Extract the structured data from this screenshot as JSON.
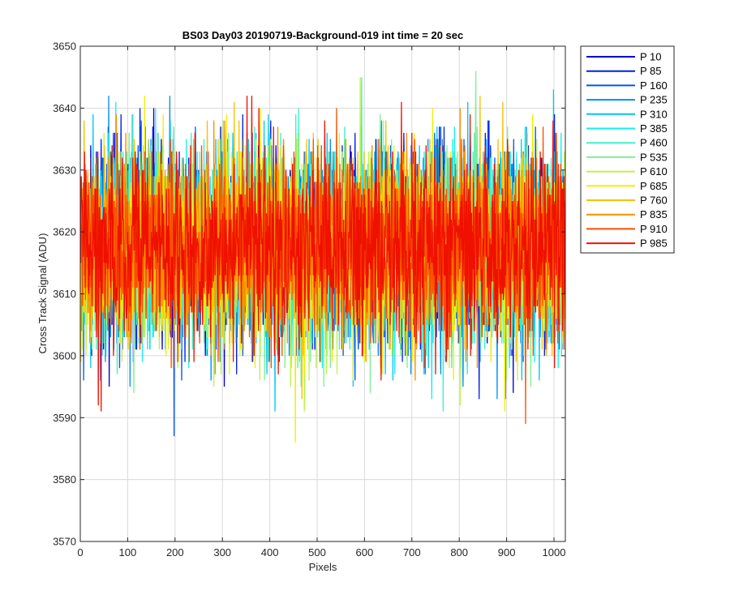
{
  "figure": {
    "background": "#ffffff"
  },
  "chart_data": {
    "type": "line",
    "title": "BS03 Day03 20190719-Background-019 int time = 20 sec",
    "xlabel": "Pixels",
    "ylabel": "Cross Track Signal (ADU)",
    "xlim": [
      0,
      1024
    ],
    "ylim": [
      3570,
      3650
    ],
    "xticks": [
      "0",
      "100",
      "200",
      "300",
      "400",
      "500",
      "600",
      "700",
      "800",
      "900",
      "1000"
    ],
    "yticks": [
      "3570",
      "3580",
      "3590",
      "3600",
      "3610",
      "3620",
      "3630",
      "3640",
      "3650"
    ],
    "grid": true,
    "legend_position": "outside-right",
    "x": {
      "start": 1,
      "end": 1024,
      "count": 1024
    },
    "noise_model": {
      "mean": 3617.5,
      "std": 7.5,
      "min": 3579,
      "max": 3646
    },
    "series": [
      {
        "name": "P 10",
        "color": "#0000d0"
      },
      {
        "name": "P 85",
        "color": "#0020e8"
      },
      {
        "name": "P 160",
        "color": "#0055f0"
      },
      {
        "name": "P 235",
        "color": "#0090f0"
      },
      {
        "name": "P 310",
        "color": "#00c8f0"
      },
      {
        "name": "P 385",
        "color": "#10f0f0"
      },
      {
        "name": "P 460",
        "color": "#40f0c8"
      },
      {
        "name": "P 535",
        "color": "#80f090"
      },
      {
        "name": "P 610",
        "color": "#c0f050"
      },
      {
        "name": "P 685",
        "color": "#f0f000"
      },
      {
        "name": "P 760",
        "color": "#f8c000"
      },
      {
        "name": "P 835",
        "color": "#f89000"
      },
      {
        "name": "P 910",
        "color": "#f85000"
      },
      {
        "name": "P 985",
        "color": "#f01000"
      }
    ]
  }
}
